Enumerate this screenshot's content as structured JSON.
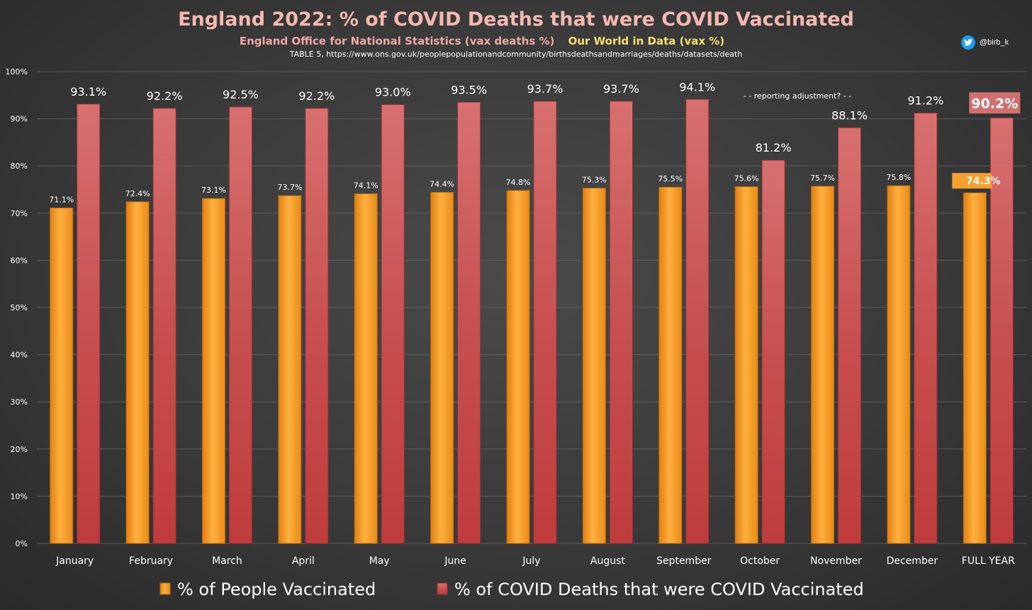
{
  "header": {
    "title": "England 2022: % of COVID Deaths that were COVID Vaccinated",
    "subtitle_left": "England Office for National Statistics (vax deaths %)",
    "subtitle_right": "Our World in Data (vax %)",
    "source": "TABLE 5, https://www.ons.gov.uk/peoplepopulationandcommunity/birthsdeathsandmarriages/deaths/datasets/death",
    "handle": "@birb_k"
  },
  "colors": {
    "vaccinated": "#f5a030",
    "deaths": "#c84848",
    "title": "#f4b8b0",
    "subtitle_left": "#f0a8a8",
    "subtitle_right": "#f5e070"
  },
  "chart_data": {
    "type": "bar",
    "categories": [
      "January",
      "February",
      "March",
      "April",
      "May",
      "June",
      "July",
      "August",
      "September",
      "October",
      "November",
      "December",
      "FULL YEAR"
    ],
    "series": [
      {
        "name": "% of People Vaccinated",
        "values": [
          71.1,
          72.4,
          73.1,
          73.7,
          74.1,
          74.4,
          74.8,
          75.3,
          75.5,
          75.6,
          75.7,
          75.8,
          74.3
        ],
        "labels": [
          "71.1%",
          "72.4%",
          "73.1%",
          "73.7%",
          "74.1%",
          "74.4%",
          "74.8%",
          "75.3%",
          "75.5%",
          "75.6%",
          "75.7%",
          "75.8%",
          "74.3%"
        ]
      },
      {
        "name": "% of COVID Deaths that were COVID Vaccinated",
        "values": [
          93.1,
          92.2,
          92.5,
          92.2,
          93.0,
          93.5,
          93.7,
          93.7,
          94.1,
          81.2,
          88.1,
          91.2,
          90.2
        ],
        "labels": [
          "93.1%",
          "92.2%",
          "92.5%",
          "92.2%",
          "93.0%",
          "93.5%",
          "93.7%",
          "93.7%",
          "94.1%",
          "81.2%",
          "88.1%",
          "91.2%",
          "90.2%"
        ]
      }
    ],
    "ylim": [
      0,
      100
    ],
    "yticks": [
      0,
      10,
      20,
      30,
      40,
      50,
      60,
      70,
      80,
      90,
      100
    ],
    "ytick_labels": [
      "0%",
      "10%",
      "20%",
      "30%",
      "40%",
      "50%",
      "60%",
      "70%",
      "80%",
      "90%",
      "100%"
    ],
    "annotation": "- - reporting adjustment? - -",
    "grid": true,
    "legend_position": "bottom"
  }
}
